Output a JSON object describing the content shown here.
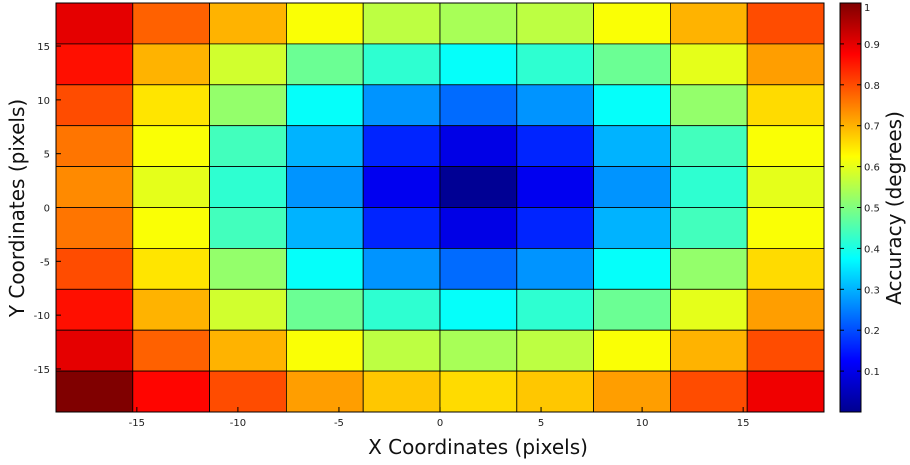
{
  "chart_data": {
    "type": "heatmap",
    "xlabel": "X Coordinates (pixels)",
    "ylabel": "Y Coordinates (pixels)",
    "colorbar_label": "Accuracy (degrees)",
    "colormap": "jet",
    "clim": [
      0,
      1
    ],
    "x_centers": [
      -17,
      -13,
      -9,
      -5,
      -1,
      3,
      7,
      11,
      15,
      19
    ],
    "y_centers": [
      17,
      13,
      9,
      5,
      1,
      -3,
      -7,
      -11,
      -15,
      -19
    ],
    "xlim": [
      -19,
      19
    ],
    "ylim": [
      -19,
      19
    ],
    "x_ticks": [
      -15,
      -10,
      -5,
      0,
      5,
      10,
      15
    ],
    "x_tick_labels": [
      "-15",
      "-10",
      "-5",
      "0",
      "5",
      "10",
      "15"
    ],
    "y_ticks": [
      15,
      10,
      5,
      0,
      -5,
      -10,
      -15
    ],
    "y_tick_labels": [
      "15",
      "10",
      "5",
      "0",
      "-5",
      "-10",
      "-15"
    ],
    "colorbar_ticks": [
      0.1,
      0.2,
      0.3,
      0.4,
      0.5,
      0.6,
      0.7,
      0.8,
      0.9,
      1
    ],
    "colorbar_tick_labels": [
      "0.1",
      "0.2",
      "0.3",
      "0.4",
      "0.5",
      "0.6",
      "0.7",
      "0.8",
      "0.9",
      "1"
    ],
    "grid": true,
    "values": [
      [
        0.9,
        0.78,
        0.7,
        0.62,
        0.56,
        0.54,
        0.56,
        0.62,
        0.7,
        0.8
      ],
      [
        0.86,
        0.7,
        0.58,
        0.48,
        0.42,
        0.38,
        0.42,
        0.48,
        0.6,
        0.72
      ],
      [
        0.8,
        0.65,
        0.52,
        0.38,
        0.27,
        0.23,
        0.27,
        0.38,
        0.52,
        0.66
      ],
      [
        0.76,
        0.62,
        0.44,
        0.3,
        0.16,
        0.1,
        0.16,
        0.3,
        0.44,
        0.62
      ],
      [
        0.74,
        0.6,
        0.42,
        0.27,
        0.11,
        0.02,
        0.11,
        0.27,
        0.42,
        0.6
      ],
      [
        0.76,
        0.62,
        0.44,
        0.3,
        0.16,
        0.1,
        0.16,
        0.3,
        0.44,
        0.62
      ],
      [
        0.8,
        0.65,
        0.52,
        0.38,
        0.27,
        0.23,
        0.27,
        0.38,
        0.52,
        0.66
      ],
      [
        0.86,
        0.7,
        0.58,
        0.48,
        0.42,
        0.38,
        0.42,
        0.48,
        0.6,
        0.72
      ],
      [
        0.9,
        0.78,
        0.7,
        0.62,
        0.56,
        0.54,
        0.56,
        0.62,
        0.7,
        0.8
      ],
      [
        1.0,
        0.87,
        0.8,
        0.72,
        0.68,
        0.66,
        0.68,
        0.72,
        0.8,
        0.89
      ]
    ]
  }
}
